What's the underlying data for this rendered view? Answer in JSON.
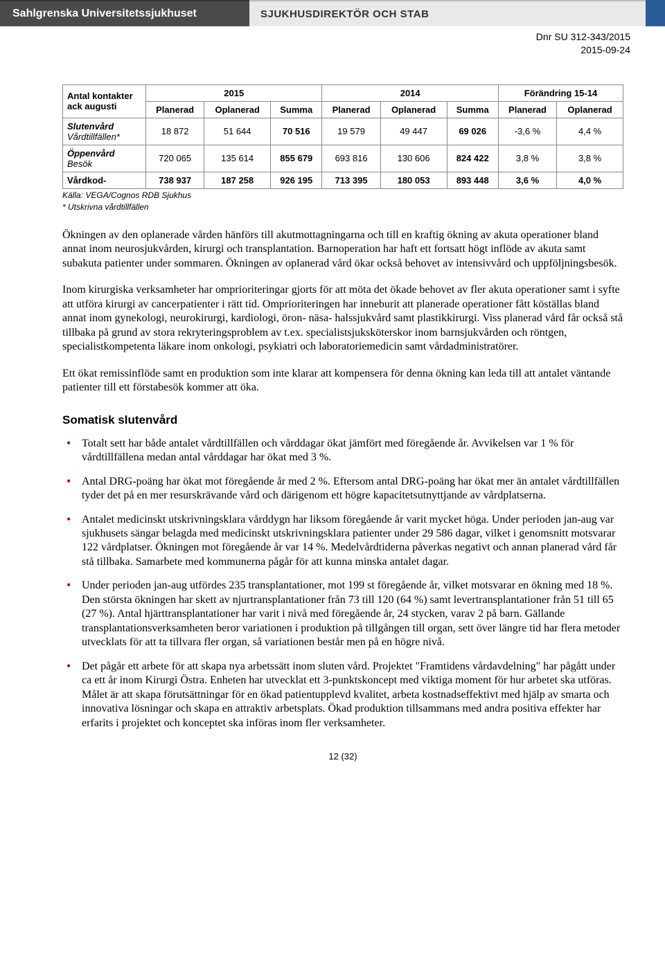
{
  "header": {
    "org": "Sahlgrenska Universitetssjukhuset",
    "dept": "SJUKHUSDIREKTÖR OCH STAB",
    "dnr": "Dnr SU 312-343/2015",
    "date": "2015-09-24"
  },
  "table": {
    "title_left_1": "Antal kontakter",
    "title_left_2": "ack augusti",
    "group_2015": "2015",
    "group_2014": "2014",
    "group_change": "Förändring 15-14",
    "sub_plan": "Planerad",
    "sub_oplan": "Oplanerad",
    "sub_sum": "Summa",
    "rows": [
      {
        "label": "Slutenvård Vårdtillfällen*",
        "italic2": true,
        "c": [
          "18 872",
          "51 644",
          "70 516",
          "19 579",
          "49 447",
          "69 026",
          "-3,6 %",
          "4,4 %"
        ]
      },
      {
        "label": "Öppenvård Besök",
        "italic2": true,
        "c": [
          "720 065",
          "135 614",
          "855 679",
          "693 816",
          "130 606",
          "824 422",
          "3,8 %",
          "3,8 %"
        ]
      },
      {
        "label": "Vårdkod-",
        "bold": true,
        "c": [
          "738 937",
          "187 258",
          "926 195",
          "713 395",
          "180 053",
          "893 448",
          "3,6 %",
          "4,0 %"
        ]
      }
    ],
    "source": "Källa: VEGA/Cognos RDB Sjukhus",
    "note": "* Utskrivna vårdtillfällen"
  },
  "paragraphs": [
    "Ökningen av den oplanerade vården hänförs till akutmottagningarna och till en kraftig ökning av akuta operationer bland annat inom neurosjukvården, kirurgi och transplantation. Barnoperation har haft ett fortsatt högt inflöde av akuta samt subakuta patienter under sommaren. Ökningen av oplanerad vård ökar också behovet av intensivvård och uppföljningsbesök.",
    "Inom kirurgiska verksamheter har omprioriteringar gjorts för att möta det ökade behovet av fler akuta operationer samt i syfte att utföra kirurgi av cancerpatienter i rätt tid. Omprioriteringen har inneburit att planerade operationer fått köställas bland annat inom gynekologi, neurokirurgi, kardiologi, öron- näsa- halssjukvård samt plastikkirurgi. Viss planerad vård får också stå tillbaka på grund av stora rekryteringsproblem av t.ex. specialistsjuksköterskor inom barnsjukvården och röntgen, specialistkompetenta läkare inom onkologi, psykiatri och laboratoriemedicin samt vårdadministratörer.",
    "Ett ökat remissinflöde samt en produktion som inte klarar att kompensera för denna ökning kan leda till att antalet väntande patienter till ett förstabesök kommer att öka."
  ],
  "section_title": "Somatisk slutenvård",
  "bullets": [
    "Totalt sett har både antalet vårdtillfällen och vårddagar ökat jämfört med föregående år. Avvikelsen var 1 % för vårdtillfällena medan antal vårddagar har ökat med 3 %.",
    "Antal DRG-poäng har ökat mot föregående år med 2 %. Eftersom antal DRG-poäng har ökat mer än antalet vårdtillfällen tyder det på en mer resurskrävande vård och därigenom ett högre kapacitetsutnyttjande av vårdplatserna.",
    "Antalet medicinskt utskrivningsklara vårddygn har liksom föregående år varit mycket höga. Under perioden jan-aug var sjukhusets sängar belagda med medicinskt utskrivningsklara patienter under 29 586 dagar, vilket i genomsnitt motsvarar 122 vårdplatser. Ökningen mot föregående år var 14 %. Medelvårdtiderna påverkas negativt och annan planerad vård får stå tillbaka. Samarbete med kommunerna pågår för att kunna minska antalet dagar.",
    "Under perioden jan-aug utfördes 235 transplantationer, mot 199 st föregående år, vilket motsvarar en ökning med 18 %. Den största ökningen har skett av njurtransplantationer från 73 till 120 (64 %) samt levertransplantationer från 51 till 65 (27 %). Antal hjärttransplantationer har varit i nivå med föregående år, 24 stycken, varav 2 på barn. Gällande transplantationsverksamheten beror variationen i produktion på tillgången till organ, sett över längre tid har flera metoder utvecklats för att ta tillvara fler organ, så variationen består men på en högre nivå.",
    "Det pågår ett arbete för att skapa nya arbetssätt inom sluten vård. Projektet \"Framtidens vårdavdelning\" har pågått under ca ett år inom Kirurgi Östra. Enheten har utvecklat ett 3-punktskoncept med viktiga moment för hur arbetet ska utföras. Målet är att skapa förutsättningar för en ökad patientupplevd kvalitet, arbeta kostnadseffektivt med hjälp av smarta och innovativa lösningar och skapa en attraktiv arbetsplats. Ökad produktion tillsammans med andra positiva effekter har erfarits i projektet och konceptet ska införas inom fler verksamheter."
  ],
  "page_number": "12 (32)",
  "colors": {
    "header_dark": "#4a4a4a",
    "header_light": "#e9e9e9",
    "header_blue": "#2a5c9a",
    "bullet": "#c00000",
    "border": "#888888"
  }
}
